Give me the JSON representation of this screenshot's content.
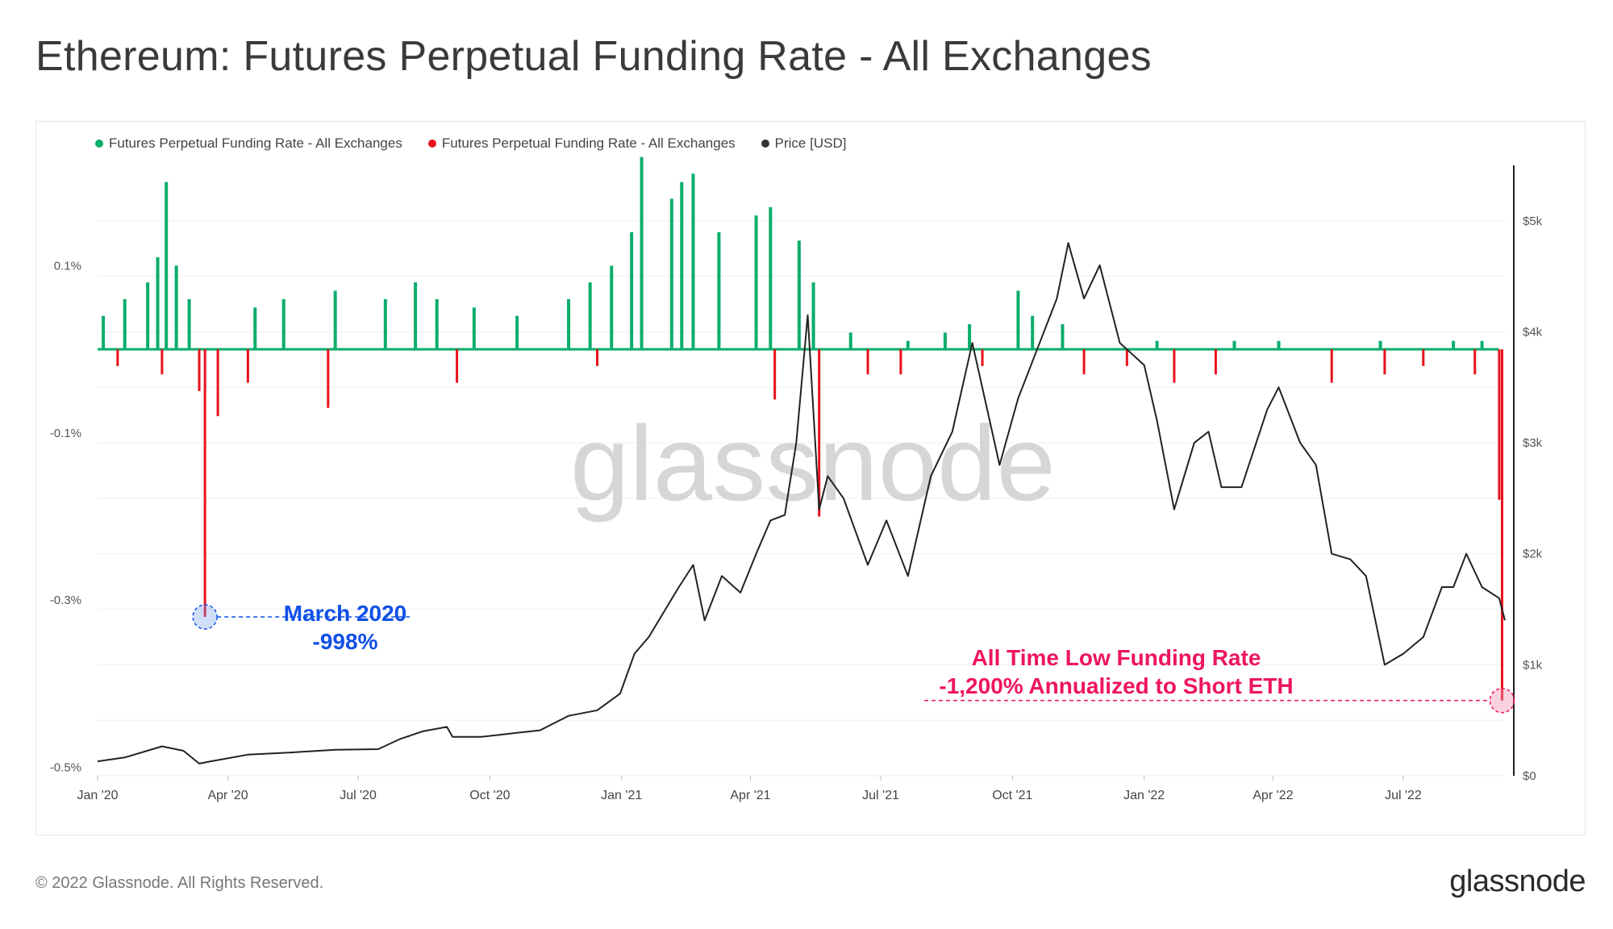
{
  "title": "Ethereum: Futures Perpetual Funding Rate - All Exchanges",
  "footer": "© 2022 Glassnode. All Rights Reserved.",
  "brand": "glassnode",
  "watermark": "glassnode",
  "colors": {
    "positive": "#0aad6b",
    "negative": "#e8111c",
    "price": "#222222",
    "annotation_blue": "#1150e6",
    "annotation_pink": "#ee1460"
  },
  "chart_data": {
    "type": "bar",
    "legend": [
      {
        "label": "Futures Perpetual Funding Rate - All Exchanges",
        "color": "#0aad6b"
      },
      {
        "label": "Futures Perpetual Funding Rate - All Exchanges",
        "color": "#e8111c"
      },
      {
        "label": "Price [USD]",
        "color": "#333333"
      }
    ],
    "legend_position": "top-left",
    "grid": true,
    "x_ticks": [
      "Jan '20",
      "Apr '20",
      "Jul '20",
      "Oct '20",
      "Jan '21",
      "Apr '21",
      "Jul '21",
      "Oct '21",
      "Jan '22",
      "Apr '22",
      "Jul '22"
    ],
    "x_range": [
      "2020-01-01",
      "2022-09-10"
    ],
    "y_left": {
      "ticks": [
        "0.1%",
        "-0.1%",
        "-0.3%",
        "-0.5%"
      ],
      "tick_values": [
        0.1,
        -0.1,
        -0.3,
        -0.5
      ],
      "range": [
        -0.51,
        0.22
      ]
    },
    "y_right": {
      "ticks": [
        "$5k",
        "$4k",
        "$3k",
        "$2k",
        "$1k",
        "$0"
      ],
      "tick_values": [
        5000,
        4000,
        3000,
        2000,
        1000,
        0
      ],
      "range": [
        0,
        5500
      ]
    },
    "series": [
      {
        "name": "Futures Perpetual Funding Rate - All Exchanges",
        "sign": "positive",
        "x": [
          "2020-01-05",
          "2020-01-20",
          "2020-02-05",
          "2020-02-12",
          "2020-02-18",
          "2020-02-25",
          "2020-03-05",
          "2020-04-20",
          "2020-05-10",
          "2020-06-15",
          "2020-07-20",
          "2020-08-10",
          "2020-08-25",
          "2020-09-20",
          "2020-10-20",
          "2020-11-25",
          "2020-12-10",
          "2020-12-25",
          "2021-01-08",
          "2021-01-15",
          "2021-02-05",
          "2021-02-12",
          "2021-02-20",
          "2021-03-10",
          "2021-04-05",
          "2021-04-15",
          "2021-05-05",
          "2021-05-15",
          "2021-06-10",
          "2021-07-20",
          "2021-08-15",
          "2021-09-01",
          "2021-10-05",
          "2021-10-15",
          "2021-11-05",
          "2022-01-10",
          "2022-03-05",
          "2022-04-05",
          "2022-06-15",
          "2022-08-05",
          "2022-08-25"
        ],
        "values": [
          0.04,
          0.06,
          0.08,
          0.11,
          0.2,
          0.1,
          0.06,
          0.05,
          0.06,
          0.07,
          0.06,
          0.08,
          0.06,
          0.05,
          0.04,
          0.06,
          0.08,
          0.1,
          0.14,
          0.23,
          0.18,
          0.2,
          0.21,
          0.14,
          0.16,
          0.17,
          0.13,
          0.08,
          0.02,
          0.01,
          0.02,
          0.03,
          0.07,
          0.04,
          0.03,
          0.01,
          0.01,
          0.01,
          0.01,
          0.01,
          0.01
        ]
      },
      {
        "name": "Futures Perpetual Funding Rate - All Exchanges",
        "sign": "negative",
        "x": [
          "2020-01-15",
          "2020-02-15",
          "2020-03-12",
          "2020-03-16",
          "2020-03-25",
          "2020-04-15",
          "2020-06-10",
          "2020-09-08",
          "2020-12-15",
          "2021-04-18",
          "2021-05-19",
          "2021-06-22",
          "2021-07-15",
          "2021-09-10",
          "2021-11-20",
          "2021-12-20",
          "2022-01-22",
          "2022-02-20",
          "2022-05-12",
          "2022-06-18",
          "2022-07-15",
          "2022-08-20",
          "2022-09-06",
          "2022-09-08"
        ],
        "values": [
          -0.02,
          -0.03,
          -0.05,
          -0.32,
          -0.08,
          -0.04,
          -0.07,
          -0.04,
          -0.02,
          -0.06,
          -0.2,
          -0.03,
          -0.03,
          -0.02,
          -0.03,
          -0.02,
          -0.04,
          -0.03,
          -0.04,
          -0.03,
          -0.02,
          -0.03,
          -0.18,
          -0.42
        ]
      },
      {
        "name": "Price [USD]",
        "axis": "right",
        "x": [
          "2020-01-01",
          "2020-01-20",
          "2020-02-15",
          "2020-03-01",
          "2020-03-12",
          "2020-03-20",
          "2020-04-15",
          "2020-05-15",
          "2020-06-15",
          "2020-07-15",
          "2020-07-30",
          "2020-08-15",
          "2020-09-01",
          "2020-09-05",
          "2020-09-25",
          "2020-10-15",
          "2020-11-05",
          "2020-11-25",
          "2020-12-15",
          "2020-12-31",
          "2021-01-10",
          "2021-01-20",
          "2021-02-10",
          "2021-02-20",
          "2021-02-28",
          "2021-03-12",
          "2021-03-25",
          "2021-04-05",
          "2021-04-15",
          "2021-04-25",
          "2021-05-03",
          "2021-05-11",
          "2021-05-19",
          "2021-05-25",
          "2021-06-05",
          "2021-06-22",
          "2021-07-05",
          "2021-07-20",
          "2021-08-05",
          "2021-08-20",
          "2021-09-03",
          "2021-09-22",
          "2021-10-05",
          "2021-10-20",
          "2021-11-01",
          "2021-11-09",
          "2021-11-20",
          "2021-12-01",
          "2021-12-15",
          "2022-01-01",
          "2022-01-10",
          "2022-01-22",
          "2022-02-05",
          "2022-02-15",
          "2022-02-24",
          "2022-03-10",
          "2022-03-28",
          "2022-04-05",
          "2022-04-20",
          "2022-05-01",
          "2022-05-12",
          "2022-05-25",
          "2022-06-05",
          "2022-06-18",
          "2022-07-01",
          "2022-07-15",
          "2022-07-28",
          "2022-08-05",
          "2022-08-14",
          "2022-08-25",
          "2022-09-06",
          "2022-09-10"
        ],
        "values": [
          130,
          165,
          265,
          225,
          110,
          130,
          190,
          210,
          235,
          240,
          330,
          400,
          440,
          350,
          350,
          380,
          410,
          540,
          590,
          740,
          1100,
          1250,
          1700,
          1900,
          1400,
          1800,
          1650,
          2000,
          2300,
          2350,
          3000,
          4150,
          2400,
          2700,
          2500,
          1900,
          2300,
          1800,
          2700,
          3100,
          3900,
          2800,
          3400,
          3900,
          4300,
          4800,
          4300,
          4600,
          3900,
          3700,
          3200,
          2400,
          3000,
          3100,
          2600,
          2600,
          3300,
          3500,
          3000,
          2800,
          2000,
          1950,
          1800,
          1000,
          1100,
          1250,
          1700,
          1700,
          2000,
          1700,
          1600,
          1400
        ]
      }
    ]
  },
  "annotations": {
    "march2020": {
      "line1": "March 2020",
      "line2": "-998%",
      "date": "2020-03-16",
      "value": -0.32
    },
    "atl": {
      "line1": "All Time Low Funding Rate",
      "line2": "-1,200% Annualized to Short ETH",
      "date": "2022-09-08",
      "value": -0.42
    }
  }
}
